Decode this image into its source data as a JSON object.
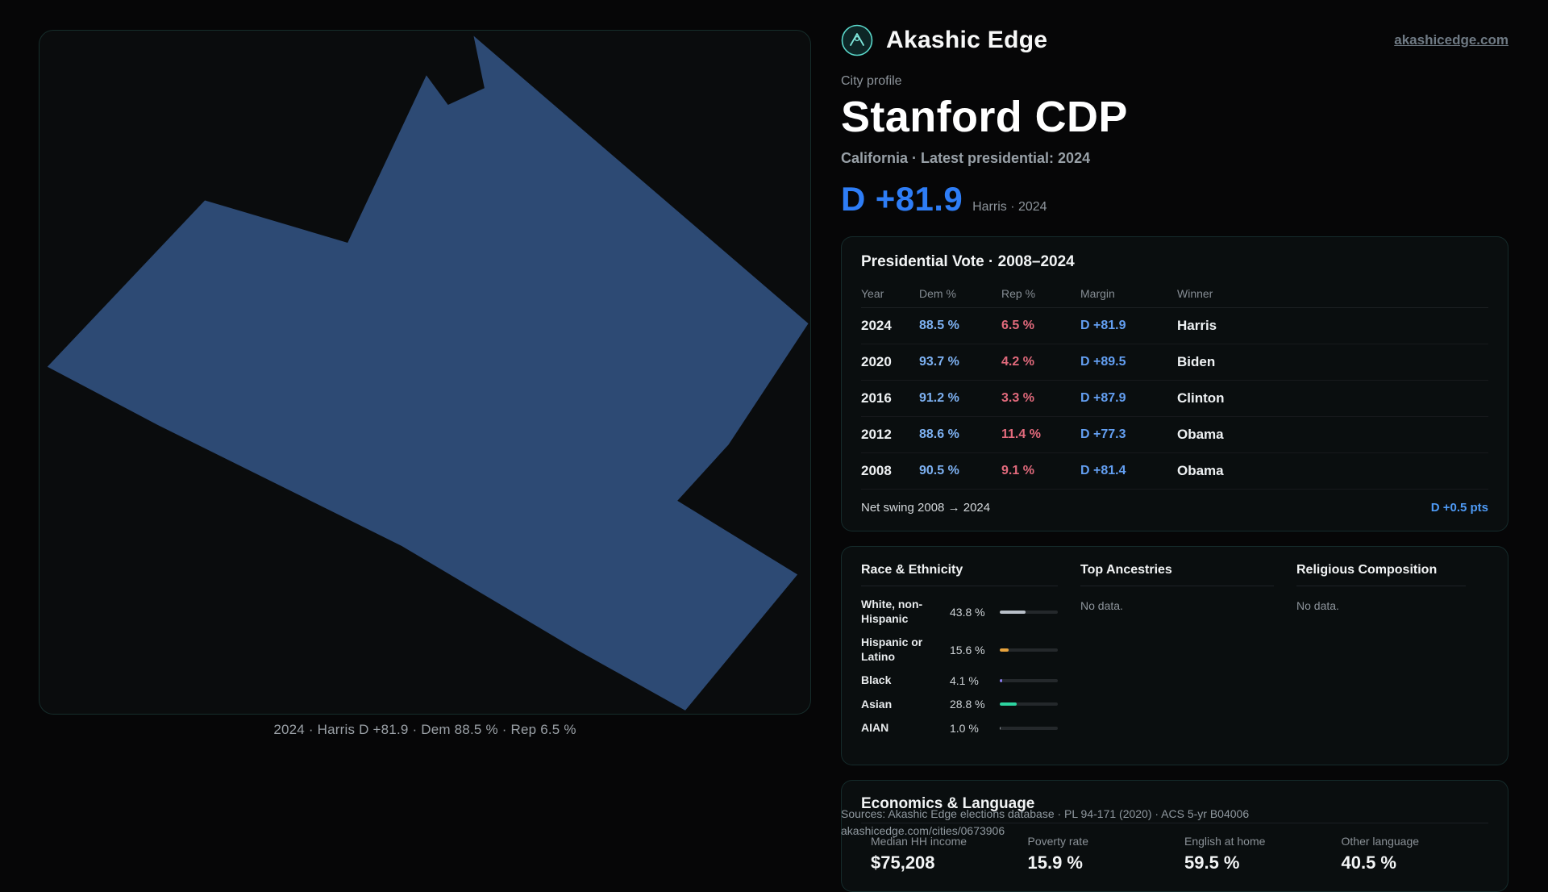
{
  "brand": {
    "name": "Akashic Edge",
    "domain": "akashicedge.com"
  },
  "profile": {
    "kicker": "City profile",
    "title": "Stanford CDP",
    "subtitle": "California · Latest presidential: 2024",
    "headline_margin": "D +81.9",
    "headline_note": "Harris · 2024"
  },
  "map": {
    "fill": "#2d4a74",
    "caption": "2024 · Harris D +81.9 · Dem 88.5 % · Rep 6.5 %"
  },
  "presidential": {
    "title": "Presidential Vote · 2008–2024",
    "columns": {
      "year": "Year",
      "dem": "Dem %",
      "rep": "Rep %",
      "margin": "Margin",
      "winner": "Winner"
    },
    "rows": [
      {
        "year": "2024",
        "dem": "88.5 %",
        "rep": "6.5 %",
        "margin": "D +81.9",
        "winner": "Harris"
      },
      {
        "year": "2020",
        "dem": "93.7 %",
        "rep": "4.2 %",
        "margin": "D +89.5",
        "winner": "Biden"
      },
      {
        "year": "2016",
        "dem": "91.2 %",
        "rep": "3.3 %",
        "margin": "D +87.9",
        "winner": "Clinton"
      },
      {
        "year": "2012",
        "dem": "88.6 %",
        "rep": "11.4 %",
        "margin": "D +77.3",
        "winner": "Obama"
      },
      {
        "year": "2008",
        "dem": "90.5 %",
        "rep": "9.1 %",
        "margin": "D +81.4",
        "winner": "Obama"
      }
    ],
    "net_swing_label": "Net swing 2008 → 2024",
    "net_swing_value": "D +0.5 pts"
  },
  "demographics": {
    "race": {
      "title": "Race & Ethnicity",
      "rows": [
        {
          "label": "White, non-Hispanic",
          "value": "43.8 %",
          "pct": 43.8,
          "color": "#b9c0c9"
        },
        {
          "label": "Hispanic or Latino",
          "value": "15.6 %",
          "pct": 15.6,
          "color": "#e8a33d"
        },
        {
          "label": "Black",
          "value": "4.1 %",
          "pct": 4.1,
          "color": "#8b7cf0"
        },
        {
          "label": "Asian",
          "value": "28.8 %",
          "pct": 28.8,
          "color": "#2dd4a0"
        },
        {
          "label": "AIAN",
          "value": "1.0 %",
          "pct": 1.0,
          "color": "#9aa0a6"
        }
      ]
    },
    "ancestries": {
      "title": "Top Ancestries",
      "empty": "No data."
    },
    "religion": {
      "title": "Religious Composition",
      "empty": "No data."
    }
  },
  "economics": {
    "title": "Economics & Language",
    "stats": [
      {
        "label": "Median HH income",
        "value": "$75,208"
      },
      {
        "label": "Poverty rate",
        "value": "15.9 %"
      },
      {
        "label": "English at home",
        "value": "59.5 %"
      },
      {
        "label": "Other language",
        "value": "40.5 %"
      }
    ]
  },
  "footer": {
    "sources": "Sources: Akashic Edge elections database · PL 94-171 (2020) · ACS 5-yr B04006",
    "permalink": "akashicedge.com/cities/0673906"
  }
}
